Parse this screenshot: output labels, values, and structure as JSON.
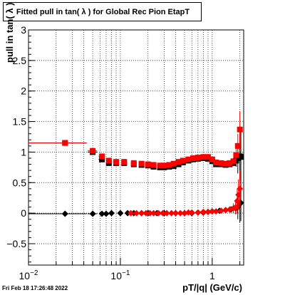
{
  "chart_data": {
    "type": "scatter",
    "title": "Fitted pull in tan( λ ) for Global Rec Pion EtapT",
    "xlabel": "pT/|q| (GeV/c)",
    "ylabel": "pull in tan( λ )",
    "xscale": "log",
    "xlim": [
      0.01,
      2.2
    ],
    "ylim": [
      -0.85,
      3.0
    ],
    "grid": true,
    "y_ticks": [
      {
        "value": 3,
        "label": "3"
      },
      {
        "value": 2.5,
        "label": "2.5"
      },
      {
        "value": 2,
        "label": "2"
      },
      {
        "value": 1.5,
        "label": "1.5"
      },
      {
        "value": 1,
        "label": "1"
      },
      {
        "value": 0.5,
        "label": "0.5"
      },
      {
        "value": 0,
        "label": "0"
      },
      {
        "value": -0.5,
        "label": "−0.5"
      }
    ],
    "x_ticks": [
      {
        "value": 0.01,
        "label": "10",
        "sup": "−2"
      },
      {
        "value": 0.1,
        "label": "10",
        "sup": "−1"
      },
      {
        "value": 1,
        "label": "1",
        "sup": ""
      }
    ],
    "series": [
      {
        "marker": "square",
        "color": "#000000",
        "x": [
          0.025,
          0.05,
          0.063,
          0.075,
          0.09,
          0.11,
          0.14,
          0.17,
          0.2,
          0.23,
          0.27,
          0.3,
          0.34,
          0.38,
          0.43,
          0.48,
          0.55,
          0.62,
          0.7,
          0.8,
          0.9,
          1.0,
          1.1,
          1.25,
          1.4,
          1.55,
          1.7,
          1.82,
          1.9,
          2.0,
          2.05
        ],
        "y": [
          1.15,
          1.0,
          0.88,
          0.82,
          0.82,
          0.82,
          0.8,
          0.79,
          0.78,
          0.76,
          0.75,
          0.75,
          0.76,
          0.77,
          0.8,
          0.83,
          0.86,
          0.88,
          0.89,
          0.9,
          0.89,
          0.85,
          0.8,
          0.8,
          0.79,
          0.8,
          0.82,
          0.86,
          0.9,
          0.93,
          0.92
        ],
        "xerr": [
          0.018,
          0.006,
          0.005,
          0.005,
          0.005,
          0,
          0,
          0,
          0,
          0,
          0,
          0,
          0,
          0,
          0,
          0,
          0,
          0,
          0,
          0,
          0,
          0,
          0,
          0,
          0,
          0,
          0,
          0,
          0,
          0,
          0
        ],
        "yerr": [
          0.01,
          0.01,
          0.01,
          0.01,
          0.01,
          0.01,
          0.01,
          0.01,
          0.01,
          0.01,
          0.01,
          0.01,
          0.01,
          0.01,
          0.01,
          0.01,
          0.01,
          0.01,
          0.01,
          0.01,
          0.01,
          0.01,
          0.01,
          0.01,
          0.02,
          0.03,
          0.05,
          0.1,
          0.25,
          0.4,
          0.45
        ]
      },
      {
        "marker": "square",
        "color": "#ff0000",
        "x": [
          0.025,
          0.05,
          0.063,
          0.075,
          0.09,
          0.11,
          0.14,
          0.17,
          0.2,
          0.23,
          0.27,
          0.3,
          0.34,
          0.38,
          0.43,
          0.48,
          0.55,
          0.62,
          0.7,
          0.8,
          0.9,
          1.0,
          1.1,
          1.25,
          1.4,
          1.55,
          1.7,
          1.82,
          1.9,
          2.0
        ],
        "y": [
          1.15,
          1.02,
          0.93,
          0.86,
          0.84,
          0.84,
          0.82,
          0.81,
          0.8,
          0.79,
          0.78,
          0.78,
          0.79,
          0.81,
          0.84,
          0.86,
          0.88,
          0.9,
          0.91,
          0.92,
          0.92,
          0.88,
          0.83,
          0.82,
          0.81,
          0.82,
          0.85,
          0.95,
          1.1,
          1.37
        ],
        "xerr": [
          0.018,
          0.006,
          0.005,
          0.005,
          0.005,
          0,
          0,
          0,
          0,
          0,
          0,
          0,
          0,
          0,
          0,
          0,
          0,
          0,
          0,
          0,
          0,
          0,
          0,
          0,
          0,
          0,
          0,
          0,
          0,
          0
        ],
        "yerr": [
          0.01,
          0.01,
          0.01,
          0.01,
          0.01,
          0.01,
          0.01,
          0.01,
          0.01,
          0.01,
          0.01,
          0.01,
          0.01,
          0.01,
          0.01,
          0.01,
          0.01,
          0.01,
          0.01,
          0.01,
          0.01,
          0.01,
          0.01,
          0.01,
          0.02,
          0.03,
          0.05,
          0.1,
          0.2,
          0.3
        ]
      },
      {
        "marker": "diamond",
        "color": "#000000",
        "x": [
          0.025,
          0.05,
          0.063,
          0.07,
          0.08,
          0.1,
          0.12,
          0.14,
          0.17,
          0.2,
          0.25,
          0.3,
          0.4,
          0.5,
          0.6,
          0.7,
          0.8,
          0.9,
          1.0,
          1.2,
          1.4,
          1.6,
          1.8,
          1.9,
          2.0,
          2.05
        ],
        "y": [
          -0.01,
          -0.01,
          -0.01,
          -0.01,
          0.0,
          0.0,
          0.0,
          0.0,
          0.0,
          0.0,
          0.0,
          0.0,
          0.0,
          0.0,
          0.0,
          0.01,
          0.01,
          0.02,
          0.03,
          0.04,
          0.05,
          0.06,
          0.08,
          0.1,
          0.15,
          0.17
        ],
        "xerr": [
          0.018,
          0.006,
          0.004,
          0.004,
          0.004,
          0.005,
          0.005,
          0.005,
          0,
          0,
          0,
          0,
          0,
          0,
          0,
          0,
          0,
          0,
          0,
          0,
          0,
          0,
          0,
          0,
          0,
          0
        ],
        "yerr": [
          0.01,
          0.01,
          0.01,
          0.01,
          0.01,
          0.01,
          0.01,
          0.01,
          0.01,
          0.01,
          0.01,
          0.01,
          0.01,
          0.01,
          0.01,
          0.01,
          0.01,
          0.01,
          0.02,
          0.02,
          0.03,
          0.05,
          0.1,
          0.2,
          0.3,
          0.3
        ]
      },
      {
        "marker": "diamond",
        "color": "#ff0000",
        "x": [
          0.13,
          0.15,
          0.17,
          0.19,
          0.21,
          0.23,
          0.26,
          0.29,
          0.32,
          0.36,
          0.4,
          0.45,
          0.5,
          0.55,
          0.6,
          0.7,
          0.8,
          0.9,
          1.0,
          1.1,
          1.25,
          1.4,
          1.55,
          1.7,
          1.8,
          1.87,
          1.93,
          2.0
        ],
        "y": [
          0.0,
          0.0,
          0.0,
          0.0,
          0.0,
          0.0,
          0.0,
          0.0,
          0.0,
          0.0,
          0.0,
          0.0,
          0.0,
          0.01,
          0.01,
          0.01,
          0.02,
          0.02,
          0.03,
          0.03,
          0.04,
          0.05,
          0.06,
          0.08,
          0.1,
          0.2,
          0.3,
          0.4
        ],
        "xerr": [
          0,
          0,
          0,
          0,
          0,
          0,
          0,
          0,
          0,
          0,
          0,
          0,
          0,
          0,
          0,
          0,
          0,
          0,
          0,
          0,
          0,
          0,
          0,
          0,
          0,
          0,
          0,
          0
        ],
        "yerr": [
          0.01,
          0.01,
          0.01,
          0.01,
          0.01,
          0.01,
          0.01,
          0.01,
          0.01,
          0.01,
          0.01,
          0.01,
          0.01,
          0.01,
          0.01,
          0.01,
          0.01,
          0.01,
          0.02,
          0.02,
          0.03,
          0.03,
          0.05,
          0.08,
          0.1,
          0.2,
          0.25,
          0.3
        ]
      }
    ]
  },
  "footer": {
    "timestamp": "Fri Feb 18 17:26:48 2022"
  }
}
